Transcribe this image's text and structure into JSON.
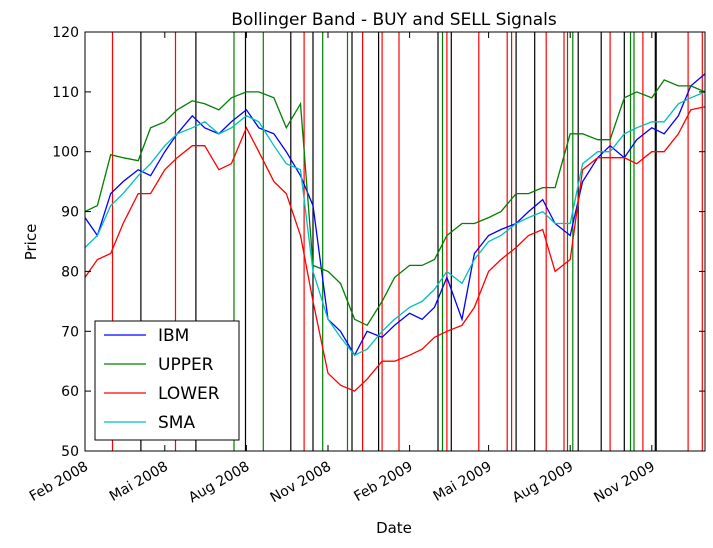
{
  "chart_data": {
    "type": "line",
    "title": "Bollinger Band - BUY and SELL Signals",
    "xlabel": "Date",
    "ylabel": "Price",
    "xlim": [
      "2008-02-01",
      "2009-12-31"
    ],
    "ylim": [
      50,
      120
    ],
    "y_ticks": [
      50,
      60,
      70,
      80,
      90,
      100,
      110,
      120
    ],
    "x_ticks": [
      {
        "date": "2008-02-01",
        "label": "Feb 2008"
      },
      {
        "date": "2008-05-01",
        "label": "Mai 2008"
      },
      {
        "date": "2008-08-01",
        "label": "Aug 2008"
      },
      {
        "date": "2008-11-01",
        "label": "Nov 2008"
      },
      {
        "date": "2009-02-01",
        "label": "Feb 2009"
      },
      {
        "date": "2009-05-01",
        "label": "Mai 2009"
      },
      {
        "date": "2009-08-01",
        "label": "Aug 2009"
      },
      {
        "date": "2009-11-01",
        "label": "Nov 2009"
      }
    ],
    "grid": false,
    "legend_position": "lower-left",
    "x": [
      "2008-02-01",
      "2008-02-15",
      "2008-03-01",
      "2008-03-15",
      "2008-04-01",
      "2008-04-15",
      "2008-05-01",
      "2008-05-15",
      "2008-06-01",
      "2008-06-15",
      "2008-07-01",
      "2008-07-15",
      "2008-08-01",
      "2008-08-15",
      "2008-09-01",
      "2008-09-15",
      "2008-10-01",
      "2008-10-15",
      "2008-11-01",
      "2008-11-15",
      "2008-12-01",
      "2008-12-15",
      "2009-01-01",
      "2009-01-15",
      "2009-02-01",
      "2009-02-15",
      "2009-03-01",
      "2009-03-15",
      "2009-04-01",
      "2009-04-15",
      "2009-05-01",
      "2009-05-15",
      "2009-06-01",
      "2009-06-15",
      "2009-07-01",
      "2009-07-15",
      "2009-08-01",
      "2009-08-15",
      "2009-09-01",
      "2009-09-15",
      "2009-10-01",
      "2009-10-15",
      "2009-11-01",
      "2009-11-15",
      "2009-12-01",
      "2009-12-15",
      "2009-12-31"
    ],
    "series": [
      {
        "name": "IBM",
        "color": "#0000ff",
        "values": [
          89,
          86,
          93,
          95,
          97,
          96,
          100,
          103,
          106,
          104,
          103,
          105,
          107,
          104,
          103,
          100,
          96,
          91,
          72,
          70,
          66,
          70,
          69,
          71,
          73,
          72,
          74,
          79,
          72,
          83,
          86,
          87,
          88,
          90,
          92,
          88,
          86,
          95,
          99,
          101,
          99,
          102,
          104,
          103,
          106,
          111,
          113
        ]
      },
      {
        "name": "UPPER",
        "color": "#008000",
        "values": [
          90,
          91,
          99.5,
          99,
          98.5,
          104,
          105,
          107,
          108.5,
          108,
          107,
          109,
          110,
          110,
          109,
          104,
          108,
          81,
          80,
          78,
          72,
          71,
          75,
          79,
          81,
          81,
          82,
          86,
          88,
          88,
          89,
          90,
          93,
          93,
          94,
          94,
          103,
          103,
          102,
          102,
          109,
          110,
          109,
          112,
          111,
          111,
          110
        ]
      },
      {
        "name": "LOWER",
        "color": "#ff0000",
        "values": [
          79,
          82,
          83,
          88,
          93,
          93,
          97,
          99,
          101,
          101,
          97,
          98,
          104,
          100,
          95,
          93,
          86,
          75,
          63,
          61,
          60,
          62,
          65,
          65,
          66,
          67,
          69,
          70,
          71,
          74,
          80,
          82,
          84,
          86,
          87,
          80,
          82,
          97,
          99,
          99,
          99,
          98,
          100,
          100,
          103,
          107,
          107.5
        ]
      },
      {
        "name": "SMA",
        "color": "#00bfbf",
        "values": [
          84,
          86,
          91,
          93,
          96,
          98,
          101,
          103,
          104,
          105,
          103,
          104,
          106,
          105,
          101,
          98,
          97,
          80,
          72,
          69,
          66,
          67,
          70,
          72,
          74,
          75,
          77,
          80,
          78,
          82,
          85,
          86,
          88,
          89,
          90,
          88,
          88,
          98,
          100,
          100,
          103,
          104,
          105,
          105,
          108,
          109,
          110
        ]
      }
    ],
    "signals": {
      "red": [
        "2008-03-03",
        "2008-05-13",
        "2008-10-05",
        "2008-12-10",
        "2009-01-01",
        "2009-01-20",
        "2009-03-15",
        "2009-04-20",
        "2009-05-22",
        "2009-05-27",
        "2009-07-05",
        "2009-07-25",
        "2009-09-15",
        "2009-10-22",
        "2009-12-12",
        "2009-12-28"
      ],
      "black": [
        "2008-04-04",
        "2008-06-05",
        "2008-07-31",
        "2008-09-20",
        "2008-10-15",
        "2008-11-28",
        "2008-12-28",
        "2009-03-05",
        "2009-03-20",
        "2009-06-01",
        "2009-06-22",
        "2009-08-10",
        "2009-09-05",
        "2009-10-01",
        "2009-11-05",
        "2009-11-06"
      ],
      "green": [
        "2008-07-18",
        "2008-08-20",
        "2008-10-26",
        "2008-11-23",
        "2009-03-10",
        "2009-07-29",
        "2009-08-04",
        "2009-10-08",
        "2009-10-12"
      ]
    },
    "legend": [
      "IBM",
      "UPPER",
      "LOWER",
      "SMA"
    ]
  }
}
